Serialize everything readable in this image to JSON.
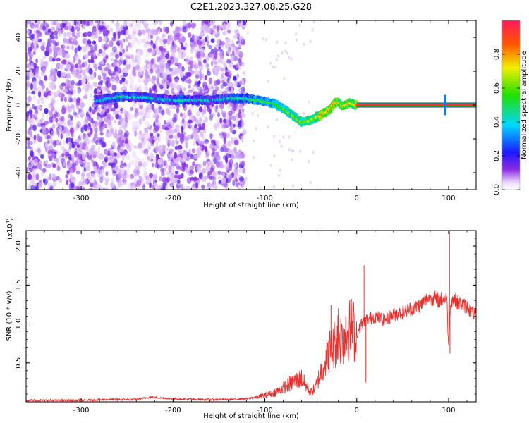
{
  "chart_data": [
    {
      "type": "heatmap",
      "title": "C2E1.2023.327.08.25.G28",
      "xlabel": "Height of straight line (km)",
      "ylabel": "Frequency (Hz)",
      "xlim": [
        -360,
        130
      ],
      "ylim": [
        -50,
        50
      ],
      "xticks": [
        "-300",
        "-200",
        "-100",
        "0",
        "100"
      ],
      "yticks": [
        "-40",
        "-20",
        "0",
        "20",
        "40"
      ],
      "colorbar": {
        "label": "Normalized spectral amplitude",
        "range": [
          0,
          1
        ],
        "ticks": [
          "0.0",
          "0.2",
          "0.4",
          "0.6",
          "0.8"
        ],
        "colormap": "rainbow (violet to red)"
      },
      "signal_ridge": {
        "x": [
          -280,
          -260,
          -240,
          -220,
          -200,
          -180,
          -160,
          -140,
          -120,
          -100,
          -90,
          -80,
          -70,
          -60,
          -50,
          -40,
          -30,
          -25,
          -20,
          -15,
          -10,
          -5,
          0,
          20,
          40,
          60,
          80,
          96,
          100,
          130
        ],
        "y": [
          3,
          5,
          5,
          4,
          3,
          3,
          3,
          4,
          4,
          2,
          1,
          -2,
          -6,
          -10,
          -9,
          -6,
          -3,
          1,
          2,
          -1,
          1,
          1,
          0,
          0,
          0,
          0,
          0,
          0,
          0,
          0
        ]
      }
    },
    {
      "type": "line",
      "xlabel": "Height of straight line (km)",
      "ylabel": "SNR (10 * v/v)",
      "yscale_label": "(x10",
      "yscale_exp": "4",
      "xlim": [
        -360,
        130
      ],
      "ylim": [
        0,
        2.2
      ],
      "xticks": [
        "-300",
        "-200",
        "-100",
        "0",
        "100"
      ],
      "yticks": [
        "0.5",
        "1.0",
        "1.5",
        "2.0"
      ],
      "line_color": "#e8322f",
      "x": [
        -360,
        -330,
        -300,
        -270,
        -240,
        -225,
        -200,
        -170,
        -140,
        -120,
        -100,
        -90,
        -80,
        -70,
        -60,
        -55,
        -50,
        -45,
        -40,
        -35,
        -30,
        -25,
        -20,
        -15,
        -10,
        -5,
        0,
        5,
        10,
        20,
        30,
        40,
        50,
        60,
        70,
        80,
        90,
        98,
        100,
        102,
        104,
        110,
        120,
        130
      ],
      "y": [
        0.02,
        0.02,
        0.02,
        0.03,
        0.03,
        0.06,
        0.04,
        0.03,
        0.03,
        0.04,
        0.08,
        0.12,
        0.18,
        0.25,
        0.3,
        0.2,
        0.12,
        0.18,
        0.35,
        0.5,
        0.65,
        0.72,
        0.85,
        0.8,
        0.9,
        0.95,
        0.85,
        1.0,
        1.05,
        1.1,
        1.05,
        1.12,
        1.15,
        1.2,
        1.25,
        1.35,
        1.3,
        1.35,
        0.7,
        1.3,
        1.32,
        1.28,
        1.22,
        1.1
      ],
      "spikes": [
        {
          "x": -28,
          "y": 1.25
        },
        {
          "x": -20,
          "y": 1.2
        },
        {
          "x": -12,
          "y": 1.1
        },
        {
          "x": 8,
          "y": 1.75
        },
        {
          "x": 10,
          "y": 0.25
        },
        {
          "x": 101,
          "y": 2.2
        },
        {
          "x": 101.5,
          "y": 0.62
        }
      ]
    }
  ]
}
